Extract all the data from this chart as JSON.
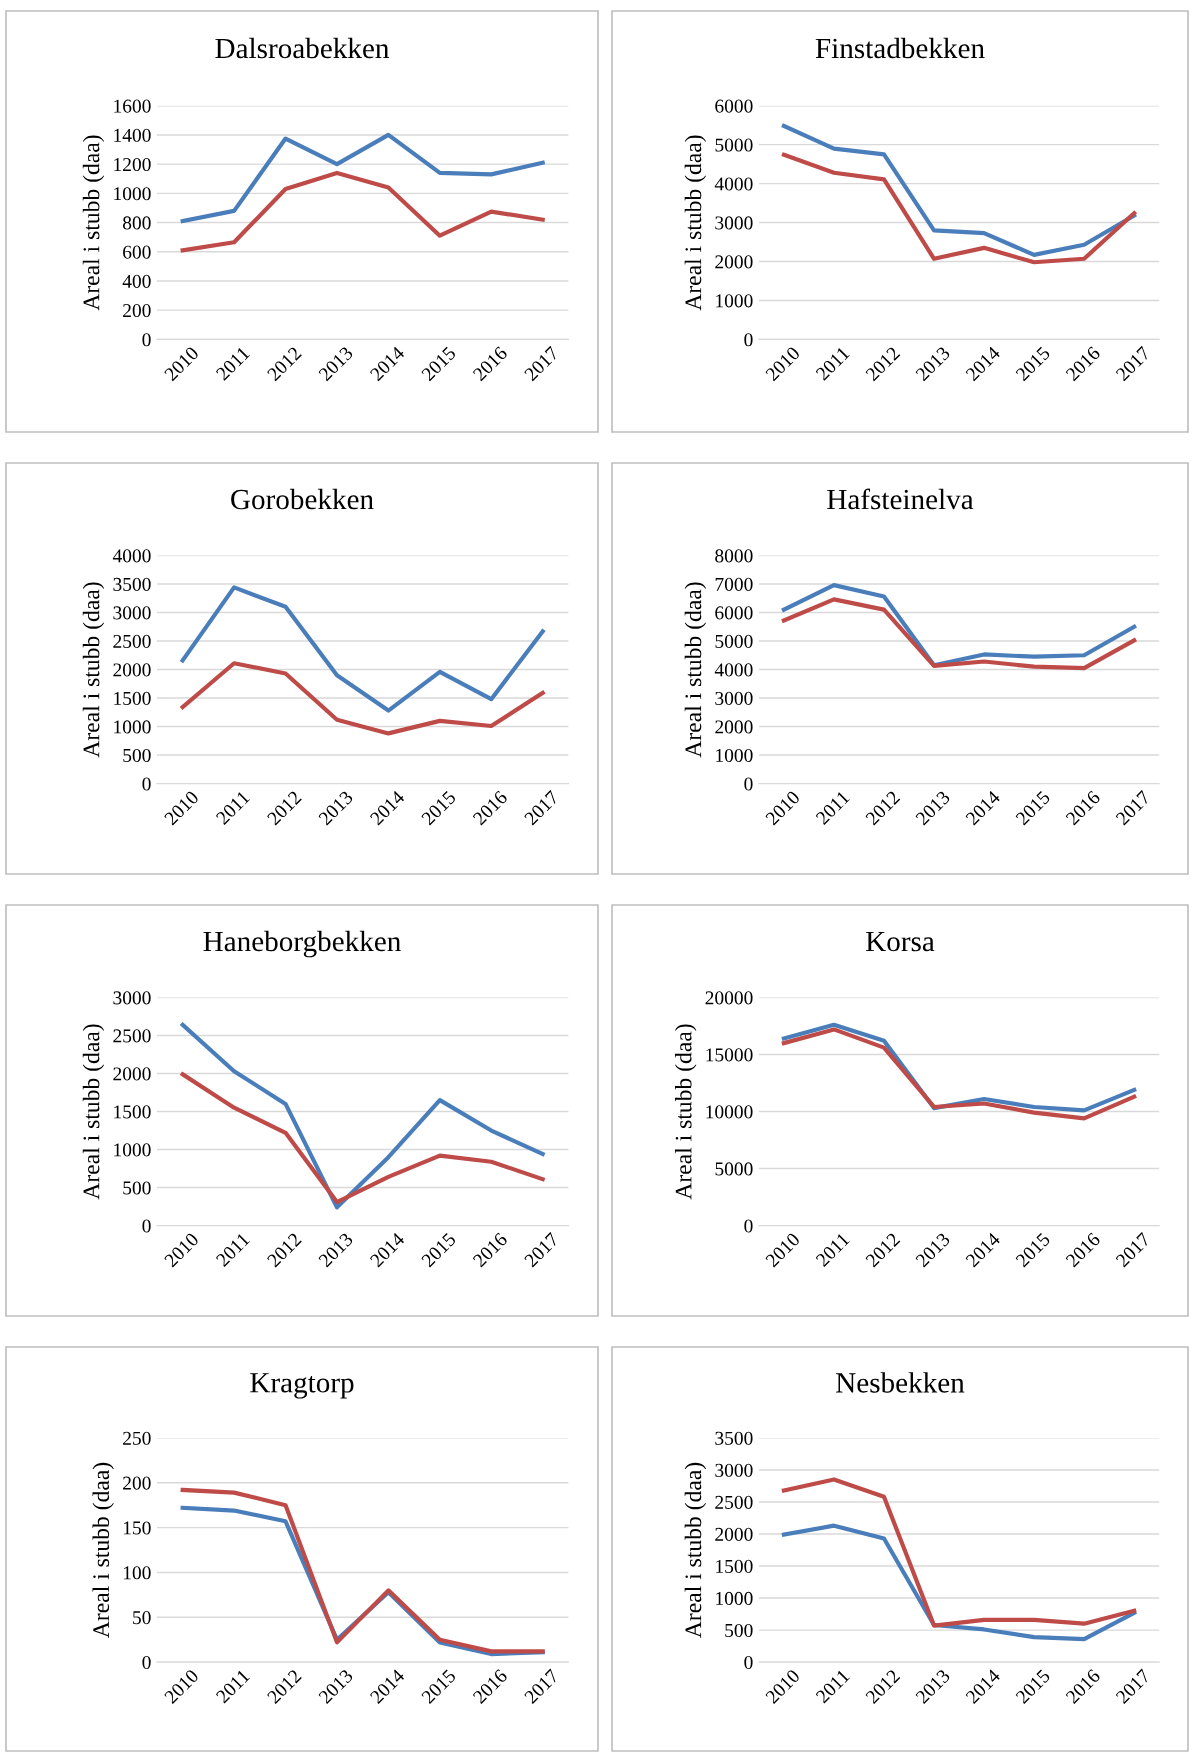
{
  "chart_data": [
    {
      "type": "line",
      "title": "Dalsroabekken",
      "ylabel": "Areal i stubb (daa)",
      "categories": [
        "2010",
        "2011",
        "2012",
        "2013",
        "2014",
        "2015",
        "2016",
        "2017"
      ],
      "ylim": [
        0,
        1600
      ],
      "yticks": [
        0,
        200,
        400,
        600,
        800,
        1000,
        1200,
        1400,
        1600
      ],
      "grid": "y",
      "series": [
        {
          "color": "#4a7ebb",
          "values": [
            810,
            880,
            1375,
            1200,
            1400,
            1140,
            1130,
            1210
          ]
        },
        {
          "color": "#be4b48",
          "values": [
            610,
            665,
            1030,
            1140,
            1040,
            710,
            875,
            820
          ]
        }
      ]
    },
    {
      "type": "line",
      "title": "Finstadbekken",
      "ylabel": "Areal i stubb (daa)",
      "categories": [
        "2010",
        "2011",
        "2012",
        "2013",
        "2014",
        "2015",
        "2016",
        "2017"
      ],
      "ylim": [
        0,
        6000
      ],
      "yticks": [
        0,
        1000,
        2000,
        3000,
        4000,
        5000,
        6000
      ],
      "grid": "y",
      "series": [
        {
          "color": "#4a7ebb",
          "values": [
            5480,
            4900,
            4750,
            2800,
            2730,
            2170,
            2430,
            3180
          ]
        },
        {
          "color": "#be4b48",
          "values": [
            4740,
            4280,
            4110,
            2070,
            2350,
            1980,
            2070,
            3240
          ]
        }
      ]
    },
    {
      "type": "line",
      "title": "Gorobekken",
      "ylabel": "Areal i stubb (daa)",
      "categories": [
        "2010",
        "2011",
        "2012",
        "2013",
        "2014",
        "2015",
        "2016",
        "2017"
      ],
      "ylim": [
        0,
        4000
      ],
      "yticks": [
        0,
        500,
        1000,
        1500,
        2000,
        2500,
        3000,
        3500,
        4000
      ],
      "grid": "y",
      "series": [
        {
          "color": "#4a7ebb",
          "values": [
            2160,
            3440,
            3100,
            1900,
            1280,
            1960,
            1480,
            2670
          ]
        },
        {
          "color": "#be4b48",
          "values": [
            1340,
            2110,
            1930,
            1120,
            880,
            1100,
            1010,
            1590
          ]
        }
      ]
    },
    {
      "type": "line",
      "title": "Hafsteinelva",
      "ylabel": "Areal i stubb (daa)",
      "categories": [
        "2010",
        "2011",
        "2012",
        "2013",
        "2014",
        "2015",
        "2016",
        "2017"
      ],
      "ylim": [
        0,
        8000
      ],
      "yticks": [
        0,
        1000,
        2000,
        3000,
        4000,
        5000,
        6000,
        7000,
        8000
      ],
      "grid": "y",
      "series": [
        {
          "color": "#4a7ebb",
          "values": [
            6100,
            6960,
            6560,
            4150,
            4530,
            4450,
            4500,
            5500
          ]
        },
        {
          "color": "#be4b48",
          "values": [
            5720,
            6460,
            6100,
            4130,
            4280,
            4100,
            4050,
            5020
          ]
        }
      ]
    },
    {
      "type": "line",
      "title": "Haneborgbekken",
      "ylabel": "Areal i stubb (daa)",
      "categories": [
        "2010",
        "2011",
        "2012",
        "2013",
        "2014",
        "2015",
        "2016",
        "2017"
      ],
      "ylim": [
        0,
        3000
      ],
      "yticks": [
        0,
        500,
        1000,
        1500,
        2000,
        2500,
        3000
      ],
      "grid": "y",
      "series": [
        {
          "color": "#4a7ebb",
          "values": [
            2640,
            2030,
            1600,
            240,
            900,
            1650,
            1250,
            940
          ]
        },
        {
          "color": "#be4b48",
          "values": [
            1990,
            1550,
            1220,
            310,
            640,
            920,
            840,
            610
          ]
        }
      ]
    },
    {
      "type": "line",
      "title": "Korsa",
      "ylabel": "Areal i stubb (daa)",
      "categories": [
        "2010",
        "2011",
        "2012",
        "2013",
        "2014",
        "2015",
        "2016",
        "2017"
      ],
      "ylim": [
        0,
        20000
      ],
      "yticks": [
        0,
        5000,
        10000,
        15000,
        20000
      ],
      "grid": "y",
      "series": [
        {
          "color": "#4a7ebb",
          "values": [
            16400,
            17600,
            16200,
            10300,
            11100,
            10400,
            10100,
            11900
          ]
        },
        {
          "color": "#be4b48",
          "values": [
            16000,
            17200,
            15600,
            10400,
            10700,
            9900,
            9400,
            11300
          ]
        }
      ]
    },
    {
      "type": "line",
      "title": "Kragtorp",
      "ylabel": "Areal i stubb (daa)",
      "categories": [
        "2010",
        "2011",
        "2012",
        "2013",
        "2014",
        "2015",
        "2016",
        "2017"
      ],
      "ylim": [
        0,
        250
      ],
      "yticks": [
        0,
        50,
        100,
        150,
        200,
        250
      ],
      "grid": "y",
      "series": [
        {
          "color": "#4a7ebb",
          "values": [
            172,
            169,
            157,
            25,
            78,
            22,
            9,
            11
          ]
        },
        {
          "color": "#be4b48",
          "values": [
            192,
            189,
            175,
            22,
            80,
            25,
            12,
            12
          ]
        }
      ]
    },
    {
      "type": "line",
      "title": "Nesbekken",
      "ylabel": "Areal i stubb (daa)",
      "categories": [
        "2010",
        "2011",
        "2012",
        "2013",
        "2014",
        "2015",
        "2016",
        "2017"
      ],
      "ylim": [
        0,
        3500
      ],
      "yticks": [
        0,
        500,
        1000,
        1500,
        2000,
        2500,
        3000,
        3500
      ],
      "grid": "y",
      "series": [
        {
          "color": "#4a7ebb",
          "values": [
            1990,
            2130,
            1930,
            580,
            510,
            390,
            360,
            770
          ]
        },
        {
          "color": "#be4b48",
          "values": [
            2680,
            2850,
            2580,
            570,
            660,
            660,
            600,
            800
          ]
        }
      ]
    }
  ]
}
